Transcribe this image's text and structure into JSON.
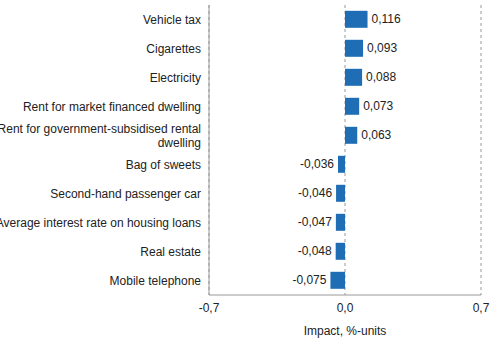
{
  "chart_data": {
    "type": "bar",
    "orientation": "horizontal",
    "categories": [
      "Vehicle tax",
      "Cigarettes",
      "Electricity",
      "Rent for market financed dwelling",
      "Rent for government-subsidised rental dwelling",
      "Bag of sweets",
      "Second-hand passenger car",
      "Average interest rate on housing loans",
      "Real estate",
      "Mobile telephone"
    ],
    "values": [
      0.116,
      0.093,
      0.088,
      0.073,
      0.063,
      -0.036,
      -0.046,
      -0.047,
      -0.048,
      -0.075
    ],
    "value_labels": [
      "0,116",
      "0,093",
      "0,088",
      "0,073",
      "0,063",
      "-0,036",
      "-0,046",
      "-0,047",
      "-0,048",
      "-0,075"
    ],
    "data_labels": true,
    "color": "#1f6db5",
    "xlabel": "Impact, %-units",
    "xlim": [
      -0.7,
      0.7
    ],
    "xticks": [
      {
        "value": -0.7,
        "label": "-0,7"
      },
      {
        "value": 0,
        "label": "0,0"
      },
      {
        "value": 0.7,
        "label": "0,7"
      }
    ],
    "grid": true
  }
}
